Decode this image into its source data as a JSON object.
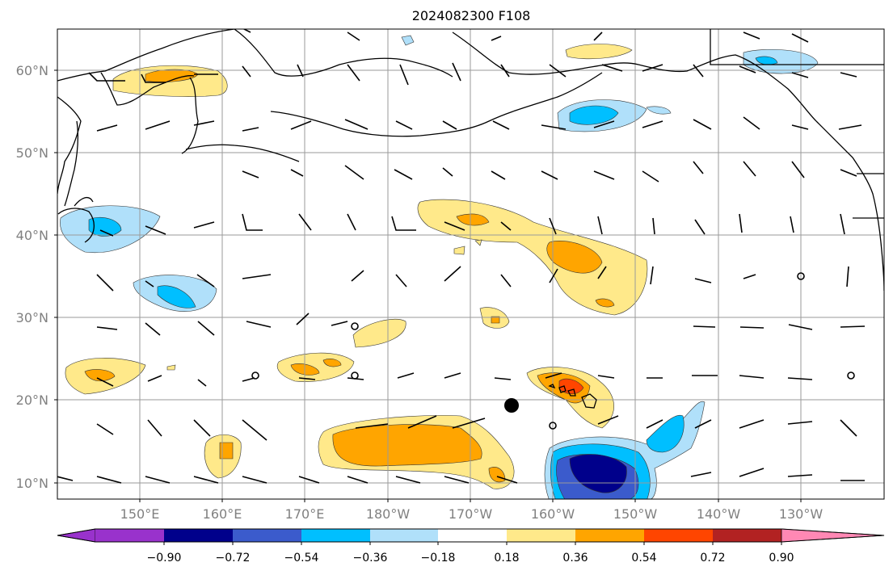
{
  "title": "2024082300 F108",
  "map": {
    "lat_labels": [
      "60°N",
      "50°N",
      "40°N",
      "30°N",
      "20°N",
      "10°N"
    ],
    "lon_labels": [
      "150°E",
      "160°E",
      "170°E",
      "180°W",
      "170°W",
      "160°W",
      "150°W",
      "140°W",
      "130°W"
    ],
    "land_color": "#ffffff",
    "coast_color": "#000000",
    "grid_color": "#9a9a9a"
  },
  "colorbar": {
    "tick_labels": [
      "−0.90",
      "−0.72",
      "−0.54",
      "−0.36",
      "−0.18",
      "0.18",
      "0.36",
      "0.54",
      "0.72",
      "0.90"
    ],
    "colors": [
      "#9932cc",
      "#00008b",
      "#3b5bcc",
      "#00bfff",
      "#b0e0fa",
      "#ffffff",
      "#ffe98a",
      "#ffa500",
      "#ff4500",
      "#b22222",
      "#ff88b4"
    ]
  },
  "fill_colors": {
    "light_yellow": "#ffe98a",
    "orange": "#ffa500",
    "red_orange": "#ff4500",
    "light_blue": "#b0e0fa",
    "cyan": "#00bfff",
    "mid_blue": "#3b5bcc",
    "navy": "#00008b"
  },
  "marker": {
    "color": "#000000"
  }
}
